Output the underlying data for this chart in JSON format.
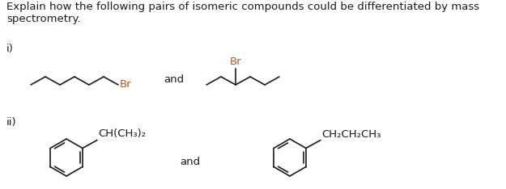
{
  "bg_color": "#ffffff",
  "title_text": "Explain how the following pairs of isomeric compounds could be differentiated by mass\nspectrometry.",
  "title_fontsize": 9.5,
  "label_i": "i)",
  "label_ii": "ii)",
  "and_text": "and",
  "Br_color": "#cc5500",
  "line_color": "#1a1a1a",
  "text_color": "#1a1a1a",
  "label_fontsize": 9.5,
  "struct_fontsize": 9.5
}
